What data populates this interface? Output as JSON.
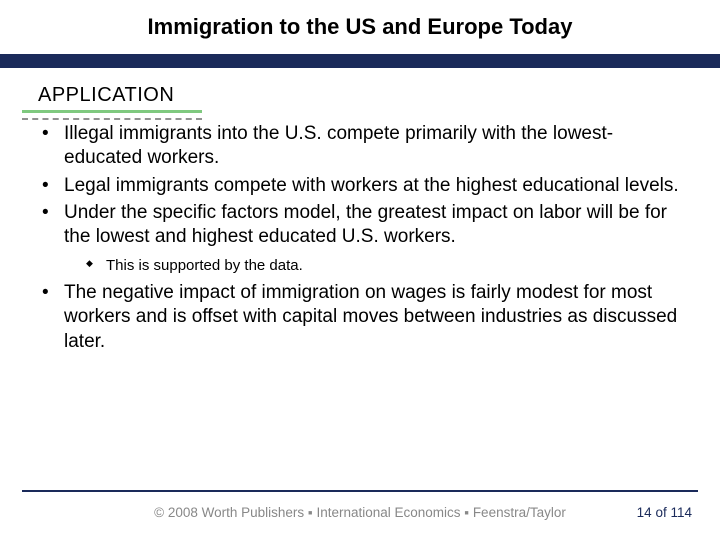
{
  "title": "Immigration to the US and Europe Today",
  "section_label": "APPLICATION",
  "colors": {
    "title_bar": "#1a2a5a",
    "section_underline": "#7fc97f",
    "dashed": "#909090",
    "footer_text": "#888888",
    "page_num": "#1a2a5a"
  },
  "bullets": [
    {
      "text": "Illegal immigrants into the U.S. compete primarily with the lowest-educated workers."
    },
    {
      "text": "Legal immigrants compete with workers at the highest educational levels."
    },
    {
      "text": "Under the specific factors model, the greatest impact on labor will be for the lowest and highest educated U.S. workers.",
      "sub": [
        "This is supported by the data."
      ]
    },
    {
      "text": "The negative impact of immigration on wages is fairly modest for most workers and is offset with capital moves between industries as discussed later."
    }
  ],
  "footer": "© 2008 Worth Publishers ▪ International Economics ▪ Feenstra/Taylor",
  "page": {
    "current": 14,
    "total": 114,
    "joiner": " of "
  }
}
